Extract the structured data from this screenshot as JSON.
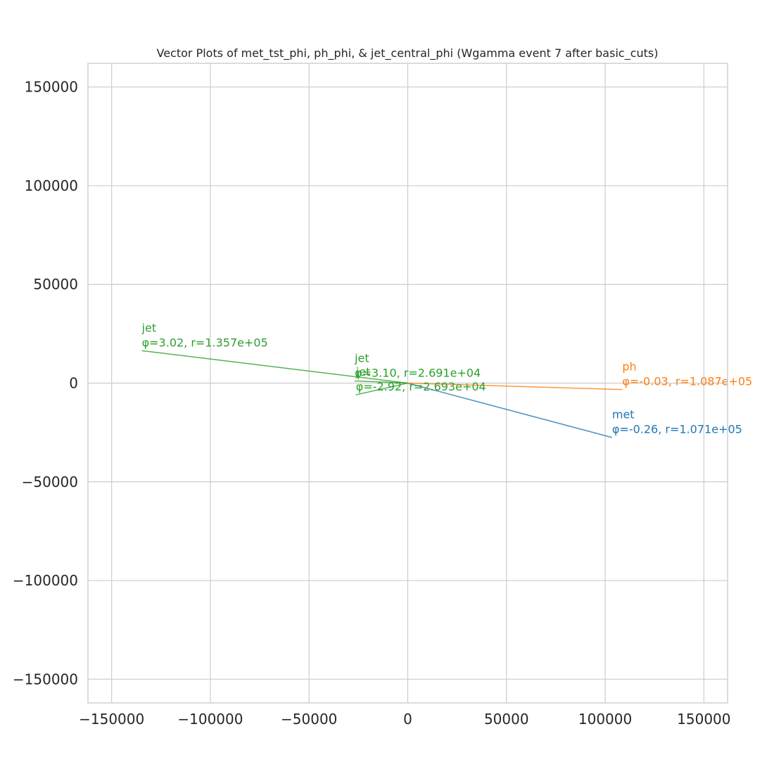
{
  "chart_data": {
    "type": "line",
    "title": "Vector Plots of met_tst_phi, ph_phi, & jet_central_phi (Wgamma event 7 after basic_cuts)",
    "xlabel": "",
    "ylabel": "",
    "xlim": [
      -162000,
      162000
    ],
    "ylim": [
      -162000,
      162000
    ],
    "xticks": [
      -150000,
      -100000,
      -50000,
      0,
      50000,
      100000,
      150000
    ],
    "yticks": [
      -150000,
      -100000,
      -50000,
      0,
      50000,
      100000,
      150000
    ],
    "xtick_labels": [
      "−150000",
      "−100000",
      "−50000",
      "0",
      "50000",
      "100000",
      "150000"
    ],
    "ytick_labels": [
      "−150000",
      "−100000",
      "−50000",
      "0",
      "50000",
      "100000",
      "150000"
    ],
    "grid": true,
    "series": [
      {
        "name": "met",
        "color": "#1f77b4",
        "phi": -0.26,
        "r": 107100,
        "label_line2": "φ=-0.26, r=1.071e+05"
      },
      {
        "name": "ph",
        "color": "#ff7f0e",
        "phi": -0.03,
        "r": 108700,
        "label_line2": "φ=-0.03, r=1.087e+05"
      },
      {
        "name": "jet",
        "color": "#2ca02c",
        "phi": 3.02,
        "r": 135700,
        "label_line2": "φ=3.02, r=1.357e+05"
      },
      {
        "name": "jet",
        "color": "#2ca02c",
        "phi": 3.1,
        "r": 26910,
        "label_line2": "φ=3.10, r=2.691e+04"
      },
      {
        "name": "jet",
        "color": "#2ca02c",
        "phi": -2.92,
        "r": 26930,
        "label_line2": "φ=-2.92, r=2.693e+04"
      }
    ]
  }
}
